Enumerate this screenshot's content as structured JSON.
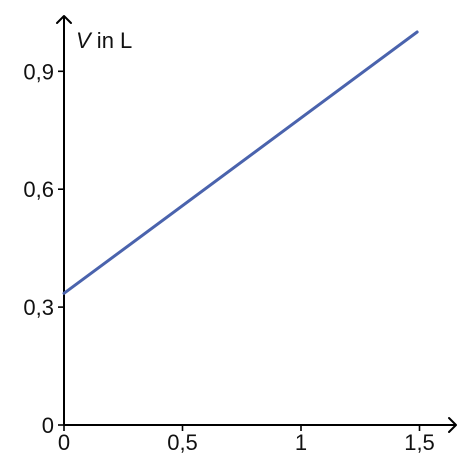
{
  "chart_data": {
    "type": "line",
    "title": "",
    "xlabel": "",
    "ylabel": {
      "variable": "V",
      "unit": " in L"
    },
    "xlim": [
      0,
      1.62
    ],
    "ylim": [
      0,
      1.07
    ],
    "x_ticks": [
      {
        "value": 0,
        "label": "0"
      },
      {
        "value": 0.5,
        "label": "0,5"
      },
      {
        "value": 1,
        "label": "1"
      },
      {
        "value": 1.5,
        "label": "1,5"
      }
    ],
    "y_ticks": [
      {
        "value": 0,
        "label": "0"
      },
      {
        "value": 0.3,
        "label": "0,3"
      },
      {
        "value": 0.6,
        "label": "0,6"
      },
      {
        "value": 0.9,
        "label": "0,9"
      }
    ],
    "series": [
      {
        "color": "#4a63ad",
        "points": [
          {
            "x": 0,
            "y": 0.335
          },
          {
            "x": 1.49,
            "y": 1.0
          }
        ]
      }
    ],
    "grid": false,
    "legend": "none"
  }
}
